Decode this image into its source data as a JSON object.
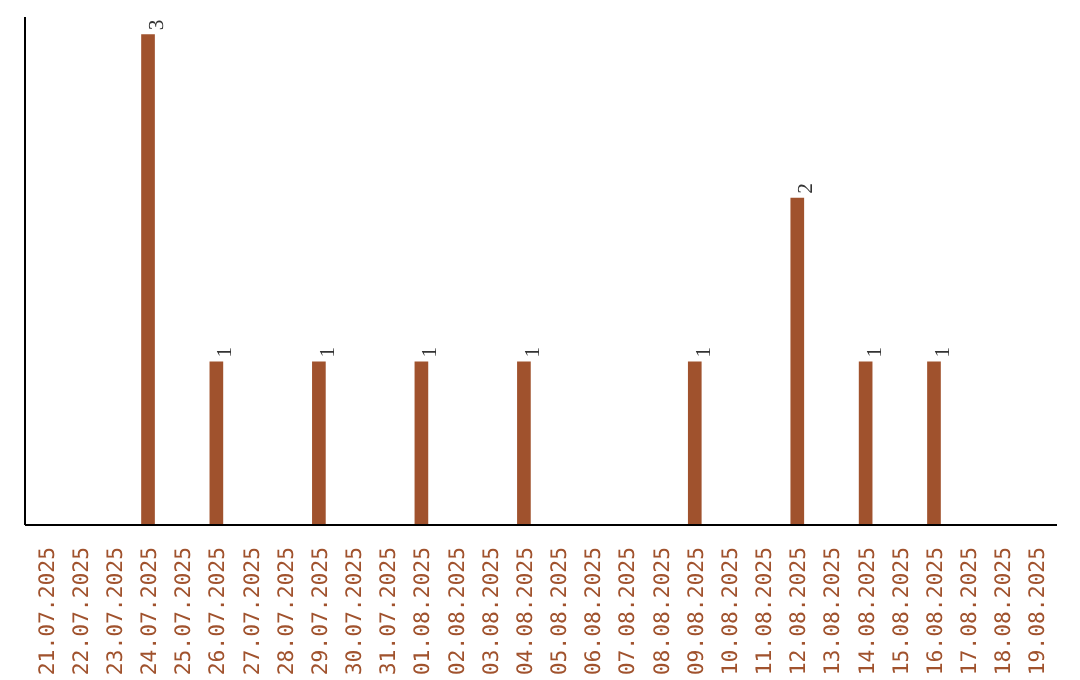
{
  "chart_data": {
    "type": "bar",
    "categories": [
      "21.07.2025",
      "22.07.2025",
      "23.07.2025",
      "24.07.2025",
      "25.07.2025",
      "26.07.2025",
      "27.07.2025",
      "28.07.2025",
      "29.07.2025",
      "30.07.2025",
      "31.07.2025",
      "01.08.2025",
      "02.08.2025",
      "03.08.2025",
      "04.08.2025",
      "05.08.2025",
      "06.08.2025",
      "07.08.2025",
      "08.08.2025",
      "09.08.2025",
      "10.08.2025",
      "11.08.2025",
      "12.08.2025",
      "13.08.2025",
      "14.08.2025",
      "15.08.2025",
      "16.08.2025",
      "17.08.2025",
      "18.08.2025",
      "19.08.2025"
    ],
    "values": [
      0,
      0,
      0,
      3,
      0,
      1,
      0,
      0,
      1,
      0,
      0,
      1,
      0,
      0,
      1,
      0,
      0,
      0,
      0,
      1,
      0,
      0,
      2,
      0,
      1,
      0,
      1,
      0,
      0,
      0
    ],
    "value_labels": [
      null,
      null,
      null,
      "3",
      null,
      "1",
      null,
      null,
      "1",
      null,
      null,
      "1",
      null,
      null,
      "1",
      null,
      null,
      null,
      null,
      "1",
      null,
      null,
      "2",
      null,
      "1",
      null,
      "1",
      null,
      null,
      null
    ],
    "color": "#a0522d",
    "tick_labels": "x",
    "grid": false
  }
}
